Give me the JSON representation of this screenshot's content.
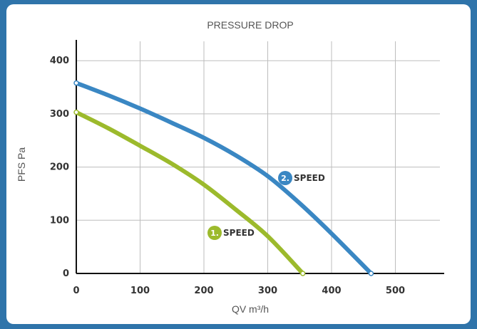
{
  "chart_data": {
    "type": "line",
    "title": "PRESSURE DROP",
    "xlabel": "QV m³/h",
    "ylabel": "PFS Pa",
    "xlim": [
      0,
      575
    ],
    "ylim": [
      0,
      440
    ],
    "x_ticks": [
      "0",
      "100",
      "200",
      "300",
      "400",
      "500"
    ],
    "y_ticks": [
      "0",
      "100",
      "200",
      "300",
      "400"
    ],
    "grid": true,
    "series": [
      {
        "name": "SPEED",
        "number": "1.",
        "color": "#9cba2c",
        "x": [
          0,
          50,
          100,
          150,
          200,
          250,
          300,
          355
        ],
        "y": [
          303,
          273,
          240,
          206,
          167,
          120,
          70,
          0
        ]
      },
      {
        "name": "SPEED",
        "number": "2.",
        "color": "#3a87c3",
        "x": [
          0,
          50,
          100,
          150,
          200,
          250,
          300,
          350,
          400,
          462
        ],
        "y": [
          358,
          335,
          310,
          283,
          255,
          222,
          183,
          132,
          75,
          0
        ]
      }
    ]
  }
}
